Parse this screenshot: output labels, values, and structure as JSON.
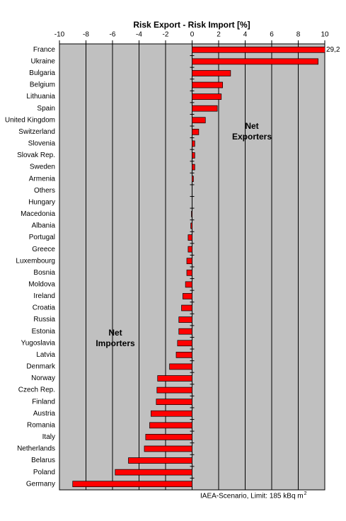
{
  "chart_data": {
    "type": "hbar",
    "title": "Risk Export - Risk Import [%]",
    "categories": [
      "France",
      "Ukraine",
      "Bulgaria",
      "Belgium",
      "Lithuania",
      "Spain",
      "United Kingdom",
      "Switzerland",
      "Slovenia",
      "Slovak Rep.",
      "Sweden",
      "Armenia",
      "Others",
      "Hungary",
      "Macedonia",
      "Albania",
      "Portugal",
      "Greece",
      "Luxembourg",
      "Bosnia",
      "Moldova",
      "Ireland",
      "Croatia",
      "Russia",
      "Estonia",
      "Yugoslavia",
      "Latvia",
      "Denmark",
      "Norway",
      "Czech Rep.",
      "Finland",
      "Austria",
      "Romania",
      "Italy",
      "Netherlands",
      "Belarus",
      "Poland",
      "Germany"
    ],
    "values": [
      29.2,
      9.5,
      2.9,
      2.3,
      2.2,
      1.9,
      1.0,
      0.5,
      0.2,
      0.2,
      0.2,
      0.1,
      0.0,
      0.0,
      -0.05,
      -0.1,
      -0.3,
      -0.3,
      -0.4,
      -0.4,
      -0.5,
      -0.7,
      -0.8,
      -1.0,
      -1.0,
      -1.1,
      -1.2,
      -1.7,
      -2.6,
      -2.65,
      -2.7,
      -3.1,
      -3.2,
      -3.5,
      -3.6,
      -4.8,
      -5.8,
      -9.0
    ],
    "value_labels": [
      "29,2",
      null,
      null,
      null,
      null,
      null,
      null,
      null,
      null,
      null,
      null,
      null,
      null,
      null,
      null,
      null,
      null,
      null,
      null,
      null,
      null,
      null,
      null,
      null,
      null,
      null,
      null,
      null,
      null,
      null,
      null,
      null,
      null,
      null,
      null,
      null,
      null,
      null
    ],
    "color": "#ff0000",
    "xlim": [
      -10,
      10
    ],
    "xticks": [
      -10,
      -8,
      -6,
      -4,
      -2,
      0,
      2,
      4,
      6,
      8,
      10
    ],
    "grid": true,
    "annotations": [
      {
        "lines": [
          "Net",
          "Exporters"
        ]
      },
      {
        "lines": [
          "Net",
          "Importers"
        ]
      }
    ],
    "footnote": "IAEA-Scenario, Limit: 185 kBq m",
    "footnote_superscript": "2"
  }
}
